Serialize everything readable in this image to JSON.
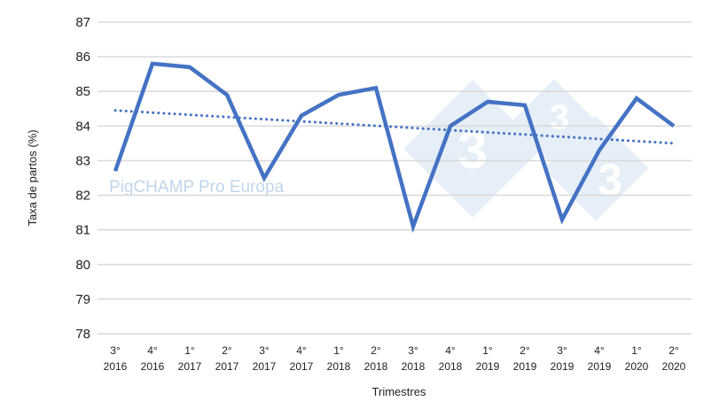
{
  "chart_data": {
    "type": "line",
    "title": "",
    "xlabel": "Trimestres",
    "ylabel": "Taxa de partos (%)",
    "ylim": [
      78,
      87
    ],
    "yticks": [
      78,
      79,
      80,
      81,
      82,
      83,
      84,
      85,
      86,
      87
    ],
    "grid": true,
    "categories": [
      [
        "3°",
        "2016"
      ],
      [
        "4°",
        "2016"
      ],
      [
        "1°",
        "2017"
      ],
      [
        "2°",
        "2017"
      ],
      [
        "3°",
        "2017"
      ],
      [
        "4°",
        "2017"
      ],
      [
        "1°",
        "2018"
      ],
      [
        "2°",
        "2018"
      ],
      [
        "3°",
        "2018"
      ],
      [
        "4°",
        "2018"
      ],
      [
        "1°",
        "2019"
      ],
      [
        "2°",
        "2019"
      ],
      [
        "3°",
        "2019"
      ],
      [
        "4°",
        "2019"
      ],
      [
        "1°",
        "2020"
      ],
      [
        "2°",
        "2020"
      ]
    ],
    "series": [
      {
        "values": [
          82.7,
          85.8,
          85.7,
          84.9,
          82.5,
          84.3,
          84.9,
          85.1,
          81.1,
          84.0,
          84.7,
          84.6,
          81.3,
          83.3,
          84.8,
          84.0
        ],
        "color": "#4472c4"
      }
    ],
    "trendline": {
      "style": "dotted",
      "start": 84.45,
      "end": 83.5,
      "color": "#4472c4"
    },
    "watermark": "PigCHAMP Pro Europa",
    "logo_watermark": "333"
  }
}
